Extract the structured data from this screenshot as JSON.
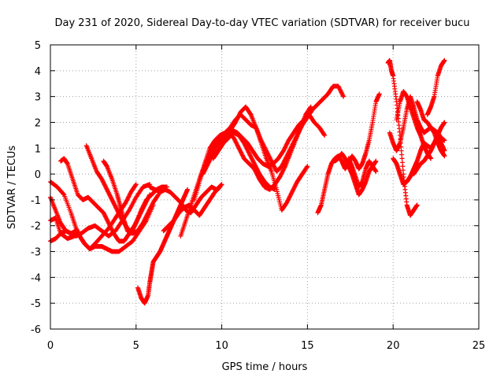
{
  "chart_data": {
    "type": "scatter",
    "title": "Day 231 of 2020, Sidereal Day-to-day VTEC variation (SDTVAR) for receiver bucu",
    "xlabel": "GPS time / hours",
    "ylabel": "SDTVAR / TECUs",
    "xlim": [
      0,
      25
    ],
    "ylim": [
      -6,
      5
    ],
    "x_ticks": [
      "0",
      "5",
      "10",
      "15",
      "20",
      "25"
    ],
    "y_ticks": [
      "-6",
      "-5",
      "-4",
      "-3",
      "-2",
      "-1",
      "0",
      "1",
      "2",
      "3",
      "4",
      "5"
    ],
    "grid": true,
    "marker": "+",
    "color": "#ff0000",
    "series": [
      {
        "x": [
          0.0,
          0.4,
          0.8,
          1.2,
          1.5,
          1.8,
          2.0,
          2.3,
          2.6,
          3.0,
          3.4,
          3.8,
          4.1,
          4.4,
          4.7,
          5.0
        ],
        "y": [
          -0.3,
          -0.5,
          -0.8,
          -1.5,
          -2.1,
          -2.5,
          -2.7,
          -2.9,
          -2.7,
          -2.4,
          -2.1,
          -1.7,
          -1.4,
          -1.1,
          -0.7,
          -0.4
        ]
      },
      {
        "x": [
          0.0,
          0.3,
          0.6,
          0.9,
          1.2,
          1.5,
          1.7,
          2.0,
          2.3,
          2.6,
          3.0,
          3.3,
          3.6,
          4.0,
          4.4,
          4.8,
          5.2,
          5.6,
          6.0
        ],
        "y": [
          -0.9,
          -1.4,
          -1.9,
          -2.2,
          -2.3,
          -2.2,
          -2.4,
          -2.7,
          -2.9,
          -2.8,
          -2.8,
          -2.9,
          -3.0,
          -3.0,
          -2.8,
          -2.6,
          -2.2,
          -1.8,
          -1.2
        ]
      },
      {
        "x": [
          0.0,
          0.3,
          0.6,
          1.0,
          1.4,
          1.8,
          2.2,
          2.6,
          3.0,
          3.4,
          3.8,
          4.2,
          4.6,
          5.0,
          5.4,
          5.8
        ],
        "y": [
          -1.8,
          -1.7,
          -2.3,
          -2.5,
          -2.4,
          -2.3,
          -2.1,
          -2.0,
          -2.2,
          -2.4,
          -2.2,
          -1.8,
          -1.4,
          -0.9,
          -0.5,
          -0.4
        ]
      },
      {
        "x": [
          0.0,
          0.3,
          0.6,
          0.9,
          1.2,
          1.5,
          1.8
        ],
        "y": [
          -2.6,
          -2.5,
          -2.3,
          -2.2,
          -2.3,
          -2.4,
          -2.3
        ]
      },
      {
        "x": [
          0.6,
          0.8,
          1.0,
          1.3,
          1.6,
          1.9,
          2.2,
          2.5,
          2.8,
          3.1,
          3.4,
          3.7,
          4.0,
          4.3,
          4.6,
          4.9,
          5.2,
          5.5,
          5.8
        ],
        "y": [
          0.5,
          0.6,
          0.4,
          -0.2,
          -0.8,
          -1.0,
          -0.9,
          -1.1,
          -1.3,
          -1.5,
          -1.9,
          -2.3,
          -2.6,
          -2.6,
          -2.3,
          -2.0,
          -1.6,
          -1.2,
          -0.8
        ]
      },
      {
        "x": [
          2.1,
          2.4,
          2.7,
          3.0,
          3.3,
          3.6,
          3.9,
          4.2,
          4.5,
          4.8,
          5.1,
          5.4,
          5.7,
          6.0,
          6.3
        ],
        "y": [
          1.1,
          0.6,
          0.1,
          -0.2,
          -0.6,
          -1.0,
          -1.4,
          -1.8,
          -2.1,
          -2.3,
          -2.2,
          -1.9,
          -1.5,
          -1.1,
          -0.8
        ]
      },
      {
        "x": [
          3.1,
          3.3,
          3.6,
          3.9,
          4.1,
          4.3,
          4.5,
          4.7,
          5.0,
          5.3,
          5.6,
          5.9,
          6.2,
          6.5,
          6.8
        ],
        "y": [
          0.5,
          0.3,
          -0.2,
          -0.8,
          -1.3,
          -1.8,
          -2.2,
          -2.3,
          -1.9,
          -1.4,
          -1.0,
          -0.8,
          -0.6,
          -0.5,
          -0.5
        ]
      },
      {
        "x": [
          5.1,
          5.3,
          5.5,
          5.7,
          5.8,
          5.9,
          6.0,
          6.2,
          6.4,
          6.6,
          6.8,
          7.0,
          7.2,
          7.4,
          7.6,
          7.8,
          8.0
        ],
        "y": [
          -4.4,
          -4.8,
          -5.0,
          -4.7,
          -4.2,
          -3.8,
          -3.4,
          -3.2,
          -3.0,
          -2.7,
          -2.4,
          -2.1,
          -1.8,
          -1.5,
          -1.2,
          -0.9,
          -0.6
        ]
      },
      {
        "x": [
          5.8,
          6.1,
          6.4,
          6.7,
          7.0,
          7.3,
          7.6,
          7.9,
          8.2,
          8.5,
          8.8,
          9.1,
          9.4,
          9.7,
          10.0
        ],
        "y": [
          -0.5,
          -0.6,
          -0.7,
          -0.6,
          -0.7,
          -0.9,
          -1.1,
          -1.4,
          -1.5,
          -1.2,
          -0.9,
          -0.7,
          -0.5,
          -0.6,
          -0.4
        ]
      },
      {
        "x": [
          6.6,
          6.9,
          7.2,
          7.5,
          7.8,
          8.1,
          8.4,
          8.7,
          9.0,
          9.3,
          9.6,
          9.9
        ],
        "y": [
          -2.2,
          -2.0,
          -1.8,
          -1.5,
          -1.3,
          -1.2,
          -1.4,
          -1.6,
          -1.3,
          -1.0,
          -0.7,
          -0.5
        ]
      },
      {
        "x": [
          7.6,
          7.9,
          8.2,
          8.5,
          8.8,
          9.1,
          9.4,
          9.7,
          10.0,
          10.3,
          10.6,
          10.9,
          11.2,
          11.5,
          11.8,
          12.1,
          12.4,
          12.7,
          13.0,
          13.3,
          13.6,
          13.9,
          14.2,
          14.5,
          14.8,
          15.1,
          15.4,
          15.7,
          16.0
        ],
        "y": [
          -2.4,
          -1.8,
          -1.2,
          -0.6,
          0.0,
          0.5,
          0.9,
          1.1,
          1.3,
          1.5,
          1.7,
          1.6,
          1.4,
          1.2,
          0.9,
          0.6,
          0.4,
          0.3,
          0.4,
          0.6,
          0.9,
          1.3,
          1.6,
          1.9,
          2.1,
          2.3,
          2.0,
          1.8,
          1.5
        ]
      },
      {
        "x": [
          8.4,
          8.7,
          9.0,
          9.3,
          9.6,
          9.9,
          10.2,
          10.5,
          10.8,
          11.1,
          11.4,
          11.7,
          12.0,
          12.3,
          12.6,
          12.9,
          13.2,
          13.5,
          13.8,
          14.1,
          14.4,
          14.7,
          15.0,
          15.3,
          15.6,
          15.9,
          16.2,
          16.5,
          16.8,
          17.1
        ],
        "y": [
          -1.0,
          -0.3,
          0.4,
          1.0,
          1.3,
          1.5,
          1.6,
          1.7,
          2.0,
          2.4,
          2.6,
          2.3,
          1.8,
          1.3,
          0.9,
          0.5,
          0.1,
          0.3,
          0.7,
          1.1,
          1.5,
          1.9,
          2.2,
          2.5,
          2.7,
          2.9,
          3.1,
          3.4,
          3.4,
          3.0
        ]
      },
      {
        "x": [
          8.9,
          9.2,
          9.5,
          9.8,
          10.1,
          10.4,
          10.7,
          11.0,
          11.3,
          11.6,
          11.9,
          12.2,
          12.5,
          12.8,
          13.1,
          13.4,
          13.7,
          14.0,
          14.3,
          14.6,
          14.9,
          15.2
        ],
        "y": [
          0.0,
          0.4,
          0.8,
          1.2,
          1.5,
          1.6,
          1.4,
          1.0,
          0.6,
          0.4,
          0.2,
          -0.2,
          -0.5,
          -0.6,
          -0.4,
          -0.1,
          0.3,
          0.8,
          1.3,
          1.8,
          2.3,
          2.6
        ]
      },
      {
        "x": [
          9.3,
          9.6,
          9.9,
          10.2,
          10.5,
          10.8,
          11.1,
          11.4,
          11.7,
          12.0,
          12.3,
          12.6,
          12.9,
          13.2,
          13.5,
          13.8,
          14.1,
          14.4,
          14.7,
          15.0
        ],
        "y": [
          0.8,
          1.1,
          1.3,
          1.6,
          1.8,
          2.1,
          2.3,
          2.1,
          1.9,
          1.8,
          1.2,
          0.6,
          0.1,
          -0.6,
          -1.4,
          -1.1,
          -0.7,
          -0.3,
          0.0,
          0.3
        ]
      },
      {
        "x": [
          9.5,
          9.8,
          10.1,
          10.4,
          10.7,
          11.0,
          11.3,
          11.6,
          11.9,
          12.2,
          12.5,
          12.8,
          13.1
        ],
        "y": [
          0.6,
          0.9,
          1.2,
          1.4,
          1.6,
          1.5,
          1.2,
          0.8,
          0.4,
          0.0,
          -0.3,
          -0.5,
          -0.6
        ]
      },
      {
        "x": [
          15.6,
          15.8,
          16.0,
          16.2,
          16.4,
          16.6,
          16.8,
          17.0,
          17.2,
          17.4,
          17.6,
          17.8,
          18.0,
          18.2,
          18.4,
          18.6,
          18.8,
          19.0,
          19.2
        ],
        "y": [
          -1.5,
          -1.2,
          -0.6,
          0.0,
          0.4,
          0.6,
          0.7,
          0.5,
          0.2,
          0.4,
          0.7,
          0.5,
          0.2,
          0.4,
          0.8,
          1.3,
          2.0,
          2.8,
          3.1
        ]
      },
      {
        "x": [
          16.6,
          16.8,
          17.0,
          17.2,
          17.4,
          17.6,
          17.8,
          18.0,
          18.2,
          18.4,
          18.6,
          18.8,
          19.0
        ],
        "y": [
          0.5,
          0.6,
          0.8,
          0.6,
          0.3,
          0.0,
          -0.4,
          -0.8,
          -0.6,
          -0.3,
          0.1,
          0.3,
          0.5
        ]
      },
      {
        "x": [
          17.4,
          17.6,
          17.8,
          18.0,
          18.2,
          18.4,
          18.6,
          18.8,
          19.0
        ],
        "y": [
          0.6,
          0.3,
          -0.1,
          -0.5,
          -0.3,
          0.2,
          0.5,
          0.3,
          0.1
        ]
      },
      {
        "x": [
          19.7,
          19.8,
          19.9,
          20.0,
          20.2,
          20.4,
          20.6,
          20.8,
          21.0,
          21.2,
          21.4
        ],
        "y": [
          4.3,
          4.4,
          4.0,
          3.8,
          2.8,
          1.5,
          0.0,
          -1.2,
          -1.6,
          -1.4,
          -1.2
        ]
      },
      {
        "x": [
          19.8,
          20.0,
          20.2,
          20.4,
          20.6,
          20.8,
          21.0,
          21.2,
          21.4,
          21.6,
          21.8,
          22.0,
          22.2,
          22.4,
          22.6,
          22.8,
          23.0
        ],
        "y": [
          1.6,
          1.2,
          0.9,
          1.2,
          1.8,
          2.5,
          3.0,
          2.6,
          2.1,
          1.8,
          1.6,
          1.7,
          1.8,
          1.6,
          1.2,
          0.9,
          0.7
        ]
      },
      {
        "x": [
          20.0,
          20.2,
          20.4,
          20.6,
          20.8,
          21.0,
          21.2,
          21.4,
          21.6,
          21.8,
          22.0,
          22.2,
          22.4,
          22.6,
          22.8,
          23.0
        ],
        "y": [
          0.6,
          0.4,
          0.0,
          -0.4,
          -0.3,
          -0.1,
          0.2,
          0.5,
          0.9,
          1.2,
          1.1,
          1.0,
          1.2,
          1.5,
          1.8,
          2.0
        ]
      },
      {
        "x": [
          20.2,
          20.4,
          20.6,
          20.8,
          21.0,
          21.2,
          21.4,
          21.6,
          21.8,
          22.0,
          22.2
        ],
        "y": [
          2.1,
          2.8,
          3.2,
          3.0,
          2.6,
          2.2,
          1.8,
          1.5,
          1.1,
          0.8,
          0.6
        ]
      },
      {
        "x": [
          21.2,
          21.4,
          21.6,
          21.8,
          22.0,
          22.2,
          22.4,
          22.6,
          22.8,
          23.0
        ],
        "y": [
          0.0,
          0.2,
          0.4,
          0.5,
          0.7,
          0.9,
          1.2,
          1.4,
          1.2,
          0.9
        ]
      },
      {
        "x": [
          22.0,
          22.2,
          22.4,
          22.6,
          22.8,
          23.0
        ],
        "y": [
          2.3,
          2.6,
          3.0,
          3.8,
          4.2,
          4.4
        ]
      },
      {
        "x": [
          21.4,
          21.6,
          21.8,
          22.0,
          22.2,
          22.4,
          22.6,
          22.8,
          23.0
        ],
        "y": [
          2.8,
          2.5,
          2.1,
          2.0,
          1.8,
          1.7,
          1.6,
          1.4,
          1.3
        ]
      }
    ]
  }
}
